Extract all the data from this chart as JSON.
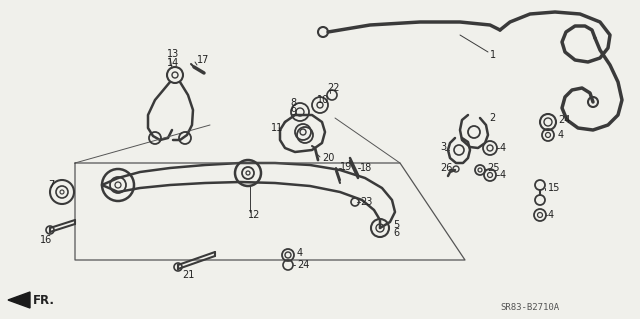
{
  "background_color": "#f0f0eb",
  "line_color": "#3a3a3a",
  "text_color": "#222222",
  "font_size": 7.0,
  "diagram_code": "SR83-B2710A"
}
